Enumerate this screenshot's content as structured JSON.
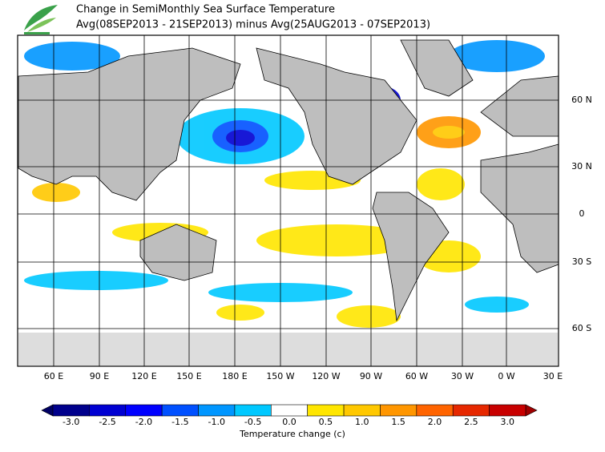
{
  "header": {
    "title": "Change in SemiMonthly Sea Surface Temperature",
    "subtitle": "Avg(08SEP2013 - 21SEP2013) minus Avg(25AUG2013 - 07SEP2013)"
  },
  "map": {
    "lon_labels": [
      "60 E",
      "90 E",
      "120 E",
      "150 E",
      "180 E",
      "150 W",
      "120 W",
      "90 W",
      "60 W",
      "30 W",
      "0 W",
      "30 E"
    ],
    "lat_labels": [
      "60 N",
      "30 N",
      "0",
      "30 S",
      "60 S"
    ]
  },
  "colorbar": {
    "ticks": [
      "-3.0",
      "-2.5",
      "-2.0",
      "-1.5",
      "-1.0",
      "-0.5",
      "0.0",
      "0.5",
      "1.0",
      "1.5",
      "2.0",
      "2.5",
      "3.0"
    ],
    "colors": [
      "#00008c",
      "#0000d2",
      "#0000ff",
      "#0050ff",
      "#0096ff",
      "#00c8ff",
      "#ffffff",
      "#ffe600",
      "#ffc800",
      "#ff9600",
      "#ff6400",
      "#e62800",
      "#c80000"
    ],
    "under_color": "#000064",
    "over_color": "#a00000",
    "label": "Temperature change  (c)"
  }
}
